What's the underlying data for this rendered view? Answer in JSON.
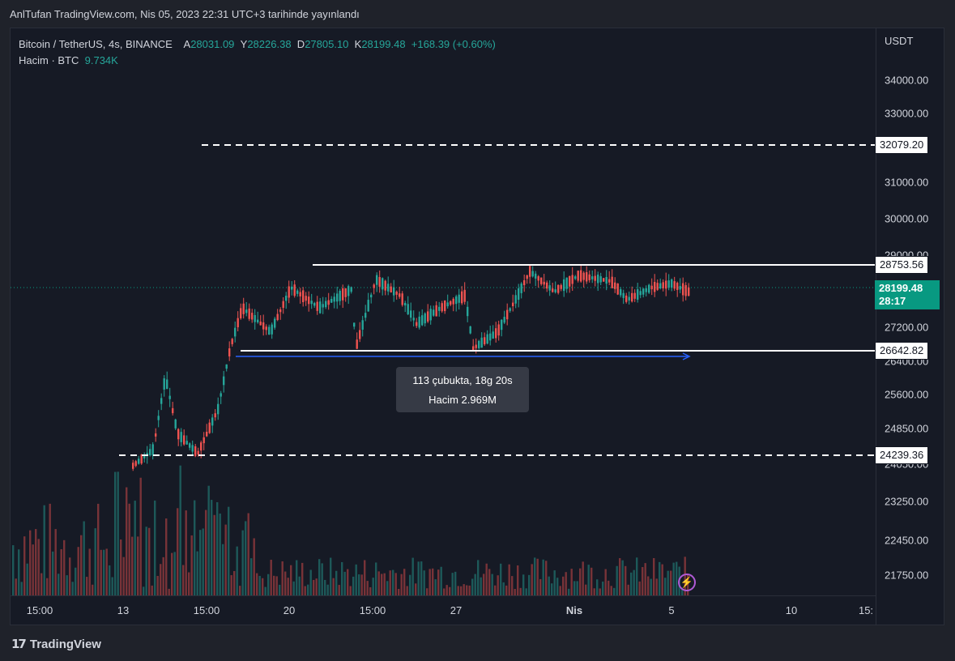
{
  "publish_line": "AnlTufan TradingView.com, Nis 05, 2023 22:31 UTC+3 tarihinde yayınlandı",
  "legend": {
    "symbol": "Bitcoin / TetherUS, 4s, BINANCE",
    "open_label": "A",
    "open": "28031.09",
    "high_label": "Y",
    "high": "28226.38",
    "low_label": "D",
    "low": "27805.10",
    "close_label": "K",
    "close": "28199.48",
    "change": "+168.39 (+0.60%)",
    "volume_label": "Hacim · BTC",
    "volume": "9.734K"
  },
  "currency": "USDT",
  "y_ticks": [
    "34000.00",
    "33000.00",
    "31000.00",
    "30000.00",
    "29000.00",
    "27200.00",
    "26400.00",
    "25600.00",
    "24850.00",
    "24050.00",
    "23250.00",
    "22450.00",
    "21750.00"
  ],
  "levels": {
    "l32079": "32079.20",
    "l28753": "28753.56",
    "l26642": "26642.82",
    "l24239": "24239.36"
  },
  "last_price": {
    "price": "28199.48",
    "countdown": "28:17"
  },
  "x_ticks": [
    "15:00",
    "13",
    "15:00",
    "20",
    "15:00",
    "27",
    "Nis",
    "5",
    "10",
    "15:"
  ],
  "measure_tooltip": {
    "line1": "113 çubukta, 18g 20s",
    "line2": "Hacim 2.969M"
  },
  "brand": "TradingView",
  "icons": {
    "lightning": "lightning-icon",
    "logo": "tradingview-logo-icon"
  },
  "colors": {
    "up": "#26a69a",
    "down": "#ef5350",
    "measure": "#2962ff",
    "bg": "#161a25"
  }
}
